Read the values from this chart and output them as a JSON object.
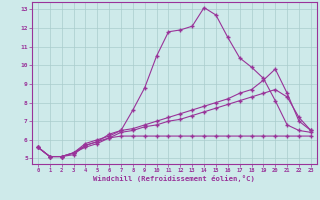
{
  "xlabel": "Windchill (Refroidissement éolien,°C)",
  "bg_color": "#ceeaea",
  "line_color": "#993399",
  "grid_color": "#aacccc",
  "tick_label_color": "#993399",
  "xlim": [
    -0.5,
    23.5
  ],
  "ylim": [
    4.7,
    13.4
  ],
  "yticks": [
    5,
    6,
    7,
    8,
    9,
    10,
    11,
    12,
    13
  ],
  "xticks": [
    0,
    1,
    2,
    3,
    4,
    5,
    6,
    7,
    8,
    9,
    10,
    11,
    12,
    13,
    14,
    15,
    16,
    17,
    18,
    19,
    20,
    21,
    22,
    23
  ],
  "line1_x": [
    0,
    1,
    2,
    3,
    4,
    5,
    6,
    7,
    8,
    9,
    10,
    11,
    12,
    13,
    14,
    15,
    16,
    17,
    18,
    19,
    20,
    21,
    22,
    23
  ],
  "line1_y": [
    5.6,
    5.1,
    5.1,
    5.2,
    5.7,
    5.9,
    6.3,
    6.5,
    7.6,
    8.8,
    10.5,
    11.8,
    11.9,
    12.1,
    13.1,
    12.7,
    11.5,
    10.4,
    9.9,
    9.3,
    8.1,
    6.8,
    6.5,
    6.4
  ],
  "line2_x": [
    0,
    1,
    2,
    3,
    4,
    5,
    6,
    7,
    8,
    9,
    10,
    11,
    12,
    13,
    14,
    15,
    16,
    17,
    18,
    19,
    20,
    21,
    22,
    23
  ],
  "line2_y": [
    5.6,
    5.1,
    5.1,
    5.3,
    5.8,
    6.0,
    6.2,
    6.5,
    6.6,
    6.8,
    7.0,
    7.2,
    7.4,
    7.6,
    7.8,
    8.0,
    8.2,
    8.5,
    8.7,
    9.2,
    9.8,
    8.5,
    7.0,
    6.5
  ],
  "line3_x": [
    0,
    1,
    2,
    3,
    4,
    5,
    6,
    7,
    8,
    9,
    10,
    11,
    12,
    13,
    14,
    15,
    16,
    17,
    18,
    19,
    20,
    21,
    22,
    23
  ],
  "line3_y": [
    5.6,
    5.1,
    5.1,
    5.3,
    5.7,
    5.9,
    6.1,
    6.4,
    6.5,
    6.7,
    6.8,
    7.0,
    7.1,
    7.3,
    7.5,
    7.7,
    7.9,
    8.1,
    8.3,
    8.5,
    8.7,
    8.3,
    7.2,
    6.5
  ],
  "line4_x": [
    0,
    1,
    2,
    3,
    4,
    5,
    6,
    7,
    8,
    9,
    10,
    11,
    12,
    13,
    14,
    15,
    16,
    17,
    18,
    19,
    20,
    21,
    22,
    23
  ],
  "line4_y": [
    5.6,
    5.1,
    5.1,
    5.3,
    5.6,
    5.8,
    6.1,
    6.2,
    6.2,
    6.2,
    6.2,
    6.2,
    6.2,
    6.2,
    6.2,
    6.2,
    6.2,
    6.2,
    6.2,
    6.2,
    6.2,
    6.2,
    6.2,
    6.2
  ]
}
